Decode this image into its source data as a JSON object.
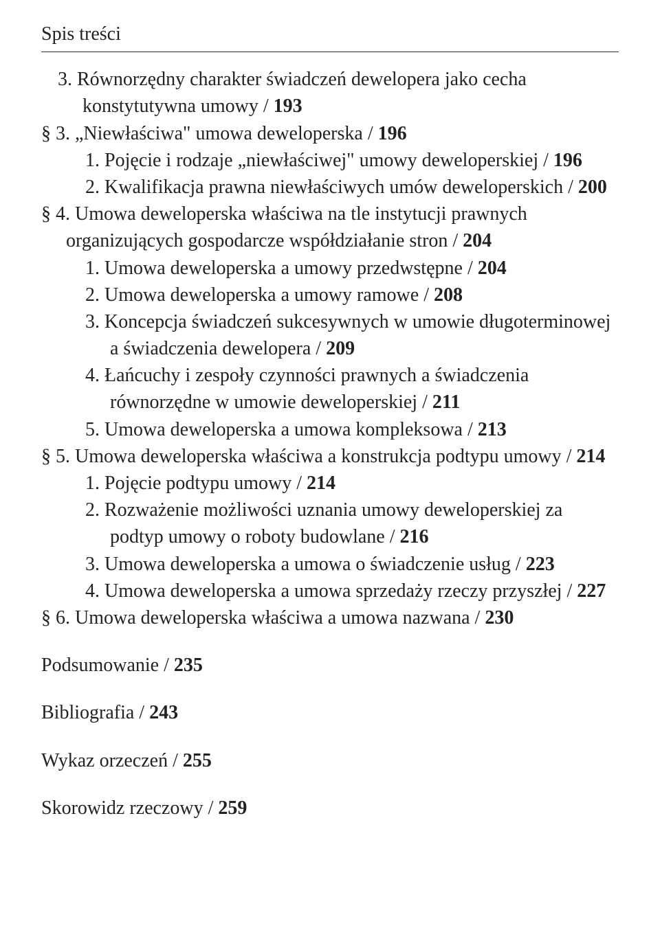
{
  "header": "Spis treści",
  "items": [
    {
      "cls": "lvl1",
      "prefix": "3.",
      "text": "Równorzędny charakter świadczeń dewelopera jako cecha konstytutywna umowy / ",
      "page": "193"
    },
    {
      "cls": "lvl1 section",
      "prefix": "§ 3.",
      "text": "„Niewłaściwa\" umowa deweloperska / ",
      "page": "196"
    },
    {
      "cls": "lvl2",
      "prefix": "1.",
      "text": "Pojęcie i rodzaje „niewłaściwej\" umowy deweloperskiej / ",
      "page": "196"
    },
    {
      "cls": "lvl2",
      "prefix": "2.",
      "text": "Kwalifikacja prawna niewłaściwych umów deweloperskich / ",
      "page": "200"
    },
    {
      "cls": "lvl1 section",
      "prefix": "§ 4.",
      "text": "Umowa deweloperska właściwa na tle instytucji prawnych organizujących gospodarcze współdziałanie stron / ",
      "page": "204"
    },
    {
      "cls": "lvl2",
      "prefix": "1.",
      "text": "Umowa deweloperska a umowy przedwstępne / ",
      "page": "204"
    },
    {
      "cls": "lvl2",
      "prefix": "2.",
      "text": "Umowa deweloperska a umowy ramowe / ",
      "page": "208"
    },
    {
      "cls": "lvl2",
      "prefix": "3.",
      "text": "Koncepcja świadczeń sukcesywnych w umowie długoterminowej a świadczenia dewelopera / ",
      "page": "209"
    },
    {
      "cls": "lvl2",
      "prefix": "4.",
      "text": "Łańcuchy i zespoły czynności prawnych a świadczenia równorzędne w umowie deweloperskiej / ",
      "page": "211"
    },
    {
      "cls": "lvl2",
      "prefix": "5.",
      "text": "Umowa deweloperska a umowa kompleksowa / ",
      "page": "213"
    },
    {
      "cls": "lvl1 section",
      "prefix": "§ 5.",
      "text": "Umowa deweloperska właściwa a konstrukcja podtypu umowy / ",
      "page": "214"
    },
    {
      "cls": "lvl2",
      "prefix": "1.",
      "text": "Pojęcie podtypu umowy / ",
      "page": "214"
    },
    {
      "cls": "lvl2",
      "prefix": "2.",
      "text": "Rozważenie możliwości uznania umowy deweloperskiej za podtyp umowy o roboty budowlane / ",
      "page": "216"
    },
    {
      "cls": "lvl2",
      "prefix": "3.",
      "text": "Umowa deweloperska a umowa o świadczenie usług / ",
      "page": "223"
    },
    {
      "cls": "lvl2",
      "prefix": "4.",
      "text": "Umowa deweloperska a umowa sprzedaży rzeczy przyszłej / ",
      "page": "227"
    },
    {
      "cls": "lvl1 section",
      "prefix": "§ 6.",
      "text": "Umowa deweloperska właściwa a umowa nazwana / ",
      "page": "230"
    }
  ],
  "after": [
    {
      "text": "Podsumowanie  / ",
      "page": "235"
    },
    {
      "text": "Bibliografia  / ",
      "page": "243"
    },
    {
      "text": "Wykaz orzeczeń  / ",
      "page": "255"
    },
    {
      "text": "Skorowidz rzeczowy  / ",
      "page": "259"
    }
  ]
}
